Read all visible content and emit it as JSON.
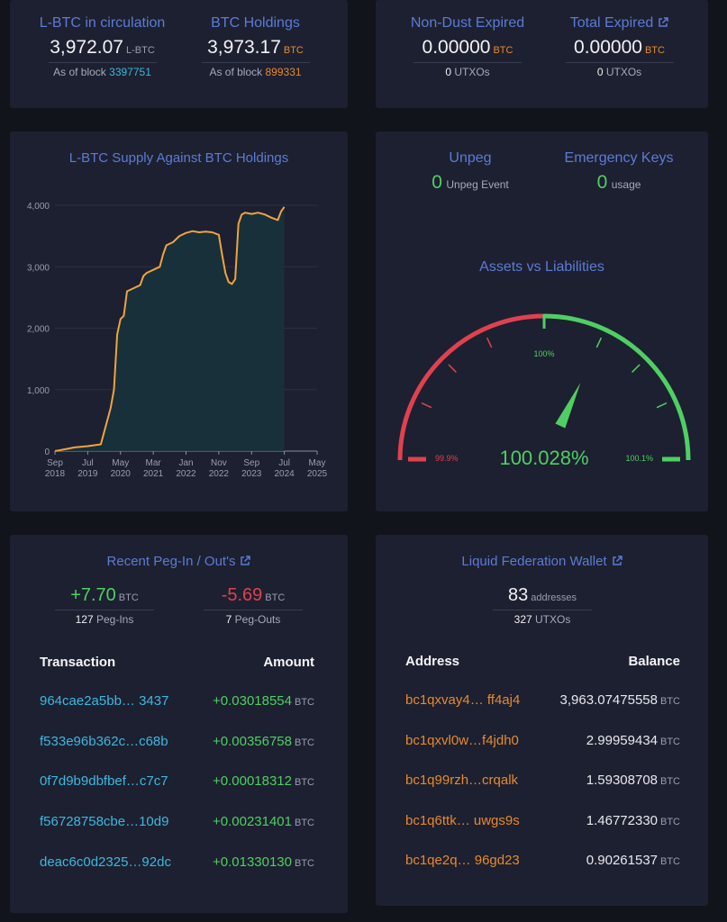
{
  "circulation": {
    "lbtc_title": "L-BTC in circulation",
    "lbtc_value": "3,972.07",
    "lbtc_unit": "L-BTC",
    "lbtc_block_label": "As of block",
    "lbtc_block": "3397751",
    "btc_title": "BTC Holdings",
    "btc_value": "3,973.17",
    "btc_unit": "BTC",
    "btc_block_label": "As of block",
    "btc_block": "899331"
  },
  "expired": {
    "nondust_title": "Non-Dust Expired",
    "nondust_value": "0.00000",
    "nondust_unit": "BTC",
    "nondust_utxos": "0",
    "nondust_utxos_label": "UTXOs",
    "total_title": "Total Expired",
    "total_value": "0.00000",
    "total_unit": "BTC",
    "total_utxos": "0",
    "total_utxos_label": "UTXOs"
  },
  "supply_chart": {
    "title": "L-BTC Supply Against BTC Holdings"
  },
  "chart_data": {
    "type": "area",
    "title": "L-BTC Supply Against BTC Holdings",
    "y_ticks": [
      "4,000",
      "3,000",
      "2,000",
      "1,000",
      "0"
    ],
    "ylim": [
      0,
      4000
    ],
    "x_ticks": [
      [
        "Sep",
        "2018"
      ],
      [
        "Jul",
        "2019"
      ],
      [
        "May",
        "2020"
      ],
      [
        "Mar",
        "2021"
      ],
      [
        "Jan",
        "2022"
      ],
      [
        "Nov",
        "2022"
      ],
      [
        "Sep",
        "2023"
      ],
      [
        "Jul",
        "2024"
      ],
      [
        "May",
        "2025"
      ]
    ],
    "series": [
      {
        "values_by_month": [
          [
            0,
            0
          ],
          [
            3,
            30
          ],
          [
            6,
            60
          ],
          [
            10,
            80
          ],
          [
            14,
            110
          ],
          [
            17,
            700
          ],
          [
            18,
            1000
          ],
          [
            19,
            1900
          ],
          [
            20,
            2150
          ],
          [
            21,
            2200
          ],
          [
            22,
            2600
          ],
          [
            24,
            2650
          ],
          [
            26,
            2700
          ],
          [
            27,
            2850
          ],
          [
            28,
            2900
          ],
          [
            30,
            2950
          ],
          [
            32,
            3000
          ],
          [
            33,
            3200
          ],
          [
            34,
            3350
          ],
          [
            36,
            3400
          ],
          [
            38,
            3500
          ],
          [
            40,
            3550
          ],
          [
            42,
            3580
          ],
          [
            44,
            3560
          ],
          [
            46,
            3570
          ],
          [
            48,
            3560
          ],
          [
            50,
            3520
          ],
          [
            51,
            3200
          ],
          [
            52,
            2900
          ],
          [
            53,
            2750
          ],
          [
            54,
            2720
          ],
          [
            55,
            2800
          ],
          [
            56,
            3700
          ],
          [
            57,
            3850
          ],
          [
            58,
            3880
          ],
          [
            60,
            3860
          ],
          [
            62,
            3880
          ],
          [
            64,
            3850
          ],
          [
            66,
            3800
          ],
          [
            68,
            3760
          ],
          [
            69,
            3900
          ],
          [
            70,
            3972
          ]
        ]
      }
    ],
    "line_color": "#f0a341",
    "fill_color": "#18323b",
    "grid": true
  },
  "unpeg": {
    "title": "Unpeg",
    "value": "0",
    "label": "Unpeg Event",
    "keys_title": "Emergency Keys",
    "keys_value": "0",
    "keys_label": "usage"
  },
  "gauge": {
    "title": "Assets vs Liabilities",
    "value": "100.028%",
    "mid_label": "100%",
    "left_label": "99.9%",
    "right_label": "100.1%",
    "ratio_percent": 100.028,
    "min_percent": 99.9,
    "max_percent": 100.1,
    "red": "#e0414f",
    "green": "#4fcf63"
  },
  "pegs": {
    "title": "Recent Peg-In / Out's",
    "in_value": "+7.70",
    "in_unit": "BTC",
    "in_count": "127",
    "in_label": "Peg-Ins",
    "out_value": "-5.69",
    "out_unit": "BTC",
    "out_count": "7",
    "out_label": "Peg-Outs",
    "col_tx": "Transaction",
    "col_amount": "Amount",
    "rows": [
      {
        "tx": "964cae2a5bb… 3437",
        "amount": "+0.03018554",
        "unit": "BTC"
      },
      {
        "tx": "f533e96b362c…c68b",
        "amount": "+0.00356758",
        "unit": "BTC"
      },
      {
        "tx": "0f7d9b9dbfbef…c7c7",
        "amount": "+0.00018312",
        "unit": "BTC"
      },
      {
        "tx": "f56728758cbe…10d9",
        "amount": "+0.00231401",
        "unit": "BTC"
      },
      {
        "tx": "deac6c0d2325…92dc",
        "amount": "+0.01330130",
        "unit": "BTC"
      }
    ]
  },
  "wallet": {
    "title": "Liquid Federation Wallet",
    "addresses": "83",
    "addresses_label": "addresses",
    "utxos": "327",
    "utxos_label": "UTXOs",
    "col_address": "Address",
    "col_balance": "Balance",
    "rows": [
      {
        "address": "bc1qxvay4… ff4aj4",
        "balance": "3,963.07475558",
        "unit": "BTC"
      },
      {
        "address": "bc1qxvl0w…f4jdh0",
        "balance": "2.99959434",
        "unit": "BTC"
      },
      {
        "address": "bc1q99rzh…crqalk",
        "balance": "1.59308708",
        "unit": "BTC"
      },
      {
        "address": "bc1q6ttk… uwgs9s",
        "balance": "1.46772330",
        "unit": "BTC"
      },
      {
        "address": "bc1qe2q… 96gd23",
        "balance": "0.90261537",
        "unit": "BTC"
      }
    ]
  }
}
